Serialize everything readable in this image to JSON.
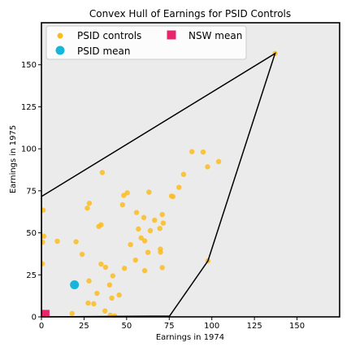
{
  "chart_data": {
    "type": "scatter",
    "title": "Convex Hull of Earnings for PSID Controls",
    "xlabel": "Earnings in 1974",
    "ylabel": "Earnings in 1975",
    "xlim": [
      0,
      175
    ],
    "ylim": [
      0,
      175
    ],
    "xticks": [
      0,
      25,
      50,
      75,
      100,
      125,
      150
    ],
    "yticks": [
      0,
      25,
      50,
      75,
      100,
      125,
      150
    ],
    "grid": false,
    "background": "#ebebeb",
    "legend_position": "top-left",
    "series": [
      {
        "name": "PSID controls",
        "kind": "points",
        "color": "#fbbc1f",
        "points": [
          [
            137.1,
            156.7
          ],
          [
            104,
            92.4
          ],
          [
            97.5,
            89.3
          ],
          [
            94.9,
            98.1
          ],
          [
            88.3,
            98.3
          ],
          [
            83.4,
            84.8
          ],
          [
            80.7,
            77.1
          ],
          [
            77.2,
            71.6
          ],
          [
            76.3,
            71.9
          ],
          [
            70.9,
            60.9
          ],
          [
            71.5,
            55.8
          ],
          [
            69.9,
            38.5
          ],
          [
            70.9,
            29.3
          ],
          [
            97.7,
            33.3
          ],
          [
            35.7,
            85.9
          ],
          [
            48.3,
            72.3
          ],
          [
            50.4,
            73.8
          ],
          [
            63.1,
            74.2
          ],
          [
            55.8,
            62.1
          ],
          [
            47.6,
            66.7
          ],
          [
            28.1,
            67.6
          ],
          [
            26.9,
            64.7
          ],
          [
            33.7,
            53.8
          ],
          [
            35.0,
            54.8
          ],
          [
            56.9,
            52.3
          ],
          [
            60.6,
            45.2
          ],
          [
            60.1,
            59.1
          ],
          [
            66.4,
            57.5
          ],
          [
            69.5,
            52.6
          ],
          [
            63.9,
            51.3
          ],
          [
            58.5,
            47.0
          ],
          [
            52.3,
            43.0
          ],
          [
            62.5,
            38.4
          ],
          [
            69.8,
            40.3
          ],
          [
            60.6,
            27.5
          ],
          [
            55.2,
            33.8
          ],
          [
            48.7,
            28.9
          ],
          [
            41.9,
            24.4
          ],
          [
            20.3,
            44.7
          ],
          [
            9.3,
            45.0
          ],
          [
            1.4,
            48.0
          ],
          [
            0.6,
            44.5
          ],
          [
            0.5,
            31.6
          ],
          [
            1.0,
            63.5
          ],
          [
            45.6,
            13.0
          ],
          [
            40.0,
            19.0
          ],
          [
            30.7,
            7.8
          ],
          [
            41.3,
            11.2
          ],
          [
            37.3,
            3.5
          ],
          [
            40.4,
            1.0
          ],
          [
            43.0,
            0.5
          ],
          [
            18.0,
            2.0
          ],
          [
            37.6,
            29.5
          ],
          [
            23.9,
            37.2
          ],
          [
            27.9,
            21.4
          ],
          [
            32.6,
            14.0
          ],
          [
            27.4,
            8.2
          ],
          [
            35.0,
            31.4
          ]
        ]
      },
      {
        "name": "PSID mean",
        "kind": "marker",
        "color": "#17b6d9",
        "points": [
          [
            19.4,
            19.1
          ]
        ]
      },
      {
        "name": "NSW mean",
        "kind": "marker",
        "color": "#e8246b",
        "points": [
          [
            2.1,
            1.5
          ]
        ]
      }
    ],
    "hull": {
      "color": "#000000",
      "points": [
        [
          0,
          71.6
        ],
        [
          137.1,
          156.7
        ],
        [
          97.7,
          33.3
        ],
        [
          75.2,
          0.5
        ],
        [
          0,
          0
        ]
      ]
    }
  }
}
